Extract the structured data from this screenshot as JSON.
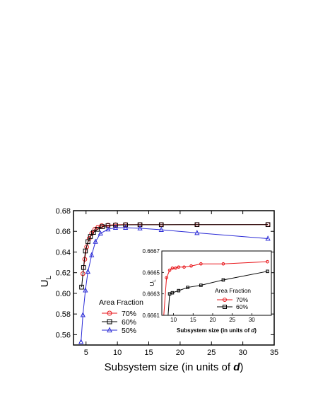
{
  "chart_data": [
    {
      "type": "line",
      "xlabel_prefix": "Subsystem size (in units of ",
      "xlabel_italic": "d",
      "xlabel_suffix": ")",
      "ylabel_main": "U",
      "ylabel_sub": "L",
      "xlim": [
        3,
        35
      ],
      "ylim": [
        0.55,
        0.68
      ],
      "xticks": [
        5,
        10,
        15,
        20,
        25,
        30,
        35
      ],
      "yticks": [
        0.56,
        0.58,
        0.6,
        0.62,
        0.64,
        0.66,
        0.68
      ],
      "xtick_labels": [
        "5",
        "10",
        "15",
        "20",
        "25",
        "30",
        "35"
      ],
      "ytick_labels": [
        "0.56",
        "0.58",
        "0.60",
        "0.62",
        "0.64",
        "0.66",
        "0.68"
      ],
      "legend_title": "Area Fraction",
      "legend_position": "left-middle",
      "series": [
        {
          "name": "70%",
          "color": "#e8161b",
          "marker": "circle",
          "x": [
            4.5,
            4.8,
            5.1,
            5.5,
            5.9,
            6.4,
            6.9,
            7.5,
            8.5,
            9.7,
            11.3,
            13.6,
            17.0,
            22.7,
            34.0
          ],
          "y": [
            0.619,
            0.633,
            0.645,
            0.653,
            0.658,
            0.662,
            0.664,
            0.6655,
            0.666,
            0.6664,
            0.6665,
            0.6665,
            0.6665,
            0.6665,
            0.6666
          ]
        },
        {
          "name": "60%",
          "color": "#000000",
          "marker": "square",
          "x": [
            4.3,
            4.6,
            4.9,
            5.3,
            5.7,
            6.2,
            6.8,
            7.6,
            8.5,
            9.7,
            11.3,
            13.6,
            17.0,
            22.7,
            34.0
          ],
          "y": [
            0.606,
            0.625,
            0.641,
            0.65,
            0.655,
            0.659,
            0.662,
            0.6645,
            0.6655,
            0.666,
            0.6663,
            0.6664,
            0.6664,
            0.6665,
            0.6665
          ]
        },
        {
          "name": "50%",
          "color": "#2b2bd6",
          "marker": "triangle",
          "x": [
            4.2,
            4.5,
            4.9,
            5.3,
            5.9,
            6.5,
            7.3,
            8.5,
            9.7,
            11.3,
            13.6,
            17.0,
            22.7,
            34.0
          ],
          "y": [
            0.553,
            0.579,
            0.603,
            0.621,
            0.637,
            0.65,
            0.658,
            0.662,
            0.6635,
            0.6635,
            0.663,
            0.6615,
            0.6585,
            0.653
          ]
        }
      ]
    },
    {
      "type": "line",
      "xlabel_prefix": "Subsystem size (in units of ",
      "xlabel_italic": "d",
      "xlabel_suffix": ")",
      "ylabel_main": "U",
      "ylabel_sub": "L",
      "xlim": [
        7,
        35
      ],
      "ylim": [
        0.6661,
        0.6667
      ],
      "xticks": [
        10,
        15,
        20,
        25,
        30
      ],
      "yticks": [
        0.6661,
        0.6663,
        0.6665,
        0.6667
      ],
      "xtick_labels": [
        "10",
        "15",
        "20",
        "25",
        "30"
      ],
      "ytick_labels": [
        "0.6661",
        "0.6663",
        "0.6665",
        "0.6667"
      ],
      "legend_title": "Area Fraction",
      "legend_position": "bottom-right",
      "series": [
        {
          "name": "70%",
          "color": "#e8161b",
          "marker": "circle",
          "x": [
            7.5,
            8.2,
            9.0,
            9.7,
            10.5,
            11.3,
            12.7,
            14.5,
            17.0,
            22.7,
            34.0
          ],
          "y": [
            0.6661,
            0.66645,
            0.66652,
            0.66654,
            0.66654,
            0.66655,
            0.66655,
            0.66656,
            0.66658,
            0.66658,
            0.6666
          ]
        },
        {
          "name": "60%",
          "color": "#000000",
          "marker": "square",
          "x": [
            8.6,
            9.0,
            9.7,
            11.3,
            13.6,
            17.0,
            22.7,
            34.0
          ],
          "y": [
            0.6661,
            0.6663,
            0.66631,
            0.66633,
            0.66636,
            0.66638,
            0.66643,
            0.66651
          ]
        }
      ]
    }
  ]
}
